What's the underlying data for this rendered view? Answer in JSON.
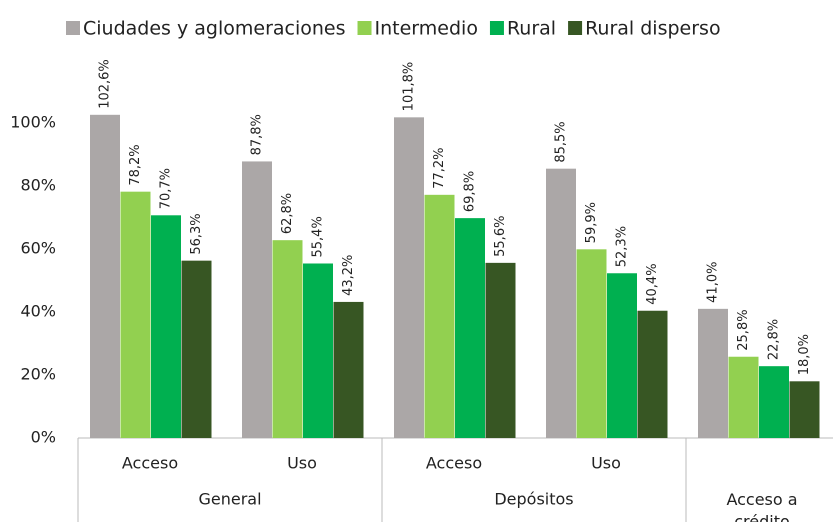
{
  "chart_data": {
    "type": "bar",
    "categories": [
      "Acceso",
      "Uso",
      "Acceso",
      "Uso",
      null
    ],
    "category_groups": [
      "General",
      "General",
      "Depósitos",
      "Depósitos",
      "Acceso a crédito"
    ],
    "series": [
      {
        "name": "Ciudades y aglomeraciones",
        "color": "#aba7a7",
        "values": [
          102.6,
          87.8,
          101.8,
          85.5,
          41.0
        ],
        "value_labels": [
          "102,6%",
          "87,8%",
          "101,8%",
          "85,5%",
          "41,0%"
        ]
      },
      {
        "name": "Intermedio",
        "color": "#92d050",
        "values": [
          78.2,
          62.8,
          77.2,
          59.9,
          25.8
        ],
        "value_labels": [
          "78,2%",
          "62,8%",
          "77,2%",
          "59,9%",
          "25,8%"
        ]
      },
      {
        "name": "Rural",
        "color": "#00b050",
        "values": [
          70.7,
          55.4,
          69.8,
          52.3,
          22.8
        ],
        "value_labels": [
          "70,7%",
          "55,4%",
          "69,8%",
          "52,3%",
          "22,8%"
        ]
      },
      {
        "name": "Rural disperso",
        "color": "#375623",
        "values": [
          56.3,
          43.2,
          55.6,
          40.4,
          18.0
        ],
        "value_labels": [
          "56,3%",
          "43,2%",
          "55,6%",
          "40,4%",
          "18,0%"
        ]
      }
    ],
    "ylim": [
      0,
      120
    ],
    "yticks": [
      {
        "value": 0,
        "label": "0%"
      },
      {
        "value": 20,
        "label": "20%"
      },
      {
        "value": 40,
        "label": "40%"
      },
      {
        "value": 60,
        "label": "60%"
      },
      {
        "value": 80,
        "label": "80%"
      },
      {
        "value": 100,
        "label": "100%"
      }
    ],
    "legend": "top"
  }
}
